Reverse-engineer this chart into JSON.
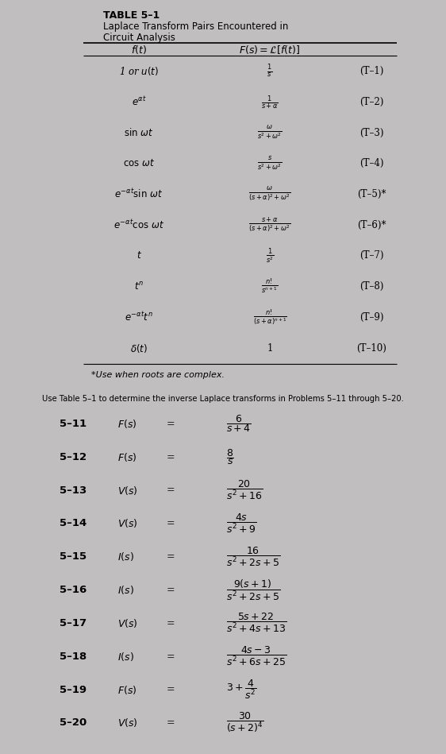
{
  "bg_color_top": "#c0bebe",
  "bg_color_bottom": "#d5d3d3",
  "bg_color_bottom2": "#e8e6e6",
  "table_title_bold": "TABLE 5–1",
  "table_subtitle1": "Laplace Transform Pairs Encountered in",
  "table_subtitle2": "Circuit Analysis",
  "rows": [
    {
      "ft": "1 or $u(t)$",
      "Fs": "$\\frac{1}{s}$",
      "label": "(T–1)"
    },
    {
      "ft": "$e^{\\alpha t}$",
      "Fs": "$\\frac{1}{s + \\alpha}$",
      "label": "(T–2)"
    },
    {
      "ft": "$\\sin\\,\\omega t$",
      "Fs": "$\\frac{\\omega}{s^2 + \\omega^2}$",
      "label": "(T–3)"
    },
    {
      "ft": "$\\cos\\,\\omega t$",
      "Fs": "$\\frac{s}{s^2 + \\omega^2}$",
      "label": "(T–4)"
    },
    {
      "ft": "$e^{-\\alpha t}\\sin\\,\\omega t$",
      "Fs": "$\\frac{\\omega}{(s + \\alpha)^2 + \\omega^2}$",
      "label": "(T–5)*"
    },
    {
      "ft": "$e^{-\\alpha t}\\cos\\,\\omega t$",
      "Fs": "$\\frac{s + \\alpha}{(s + \\alpha)^2 + \\omega^2}$",
      "label": "(T–6)*"
    },
    {
      "ft": "$t$",
      "Fs": "$\\frac{1}{s^2}$",
      "label": "(T–7)"
    },
    {
      "ft": "$t^n$",
      "Fs": "$\\frac{n!}{s^{n+1}}$",
      "label": "(T–8)"
    },
    {
      "ft": "$e^{-\\alpha t}t^n$",
      "Fs": "$\\frac{n!}{(s + \\alpha)^{n+1}}$",
      "label": "(T–9)"
    },
    {
      "ft": "$\\delta(t)$",
      "Fs": "1",
      "label": "(T–10)"
    }
  ],
  "footnote": "*Use when roots are complex.",
  "problems_intro": "Use Table 5–1 to determine the inverse Laplace transforms in Problems 5–11 through 5–20.",
  "problems": [
    {
      "num": "5–11",
      "var": "$F(s)$",
      "expr": "$\\dfrac{6}{s + 4}$"
    },
    {
      "num": "5–12",
      "var": "$F(s)$",
      "expr": "$\\dfrac{8}{s}$"
    },
    {
      "num": "5–13",
      "var": "$V(s)$",
      "expr": "$\\dfrac{20}{s^2 + 16}$"
    },
    {
      "num": "5–14",
      "var": "$V(s)$",
      "expr": "$\\dfrac{4s}{s^2 + 9}$"
    },
    {
      "num": "5–15",
      "var": "$I(s)$",
      "expr": "$\\dfrac{16}{s^2 + 2s + 5}$"
    },
    {
      "num": "5–16",
      "var": "$I(s)$",
      "expr": "$\\dfrac{9(s + 1)}{s^2 + 2s + 5}$"
    },
    {
      "num": "5–17",
      "var": "$V(s)$",
      "expr": "$\\dfrac{5s + 22}{s^2 + 4s + 13}$"
    },
    {
      "num": "5–18",
      "var": "$I(s)$",
      "expr": "$\\dfrac{4s - 3}{s^2 + 6s + 25}$"
    },
    {
      "num": "5–19",
      "var": "$F(s)$",
      "expr": "$3 + \\dfrac{4}{s^2}$"
    },
    {
      "num": "5–20",
      "var": "$V(s)$",
      "expr": "$\\dfrac{30}{(s + 2)^4}$"
    }
  ]
}
